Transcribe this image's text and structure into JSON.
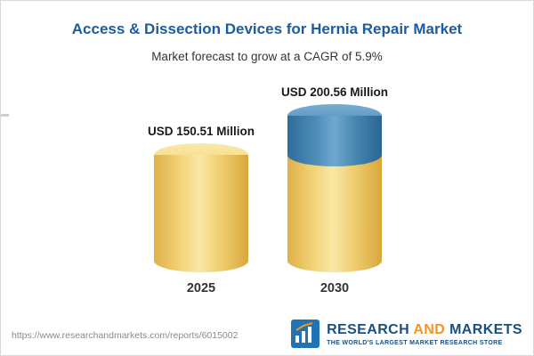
{
  "header": {
    "title": "Access & Dissection Devices for Hernia Repair Market",
    "subtitle": "Market forecast to grow at a CAGR of 5.9%"
  },
  "chart_data": {
    "type": "bar",
    "subtype": "3d-cylinder",
    "categories": [
      "2025",
      "2030"
    ],
    "values": [
      150.51,
      200.56
    ],
    "value_labels": [
      "USD 150.51 Million",
      "USD 200.56 Million"
    ],
    "unit": "USD Million",
    "cagr_percent": 5.9,
    "grid": false,
    "legend": "none",
    "colors": {
      "base_segment": "#F2D478",
      "growth_segment": "#4E8CB8",
      "title": "#1B5CA3"
    }
  },
  "footer": {
    "source_url": "https://www.researchandmarkets.com/reports/6015002",
    "logo": {
      "word1": "RESEARCH",
      "word2": "AND",
      "word3": "MARKETS",
      "tagline": "THE WORLD'S LARGEST MARKET RESEARCH STORE"
    }
  }
}
